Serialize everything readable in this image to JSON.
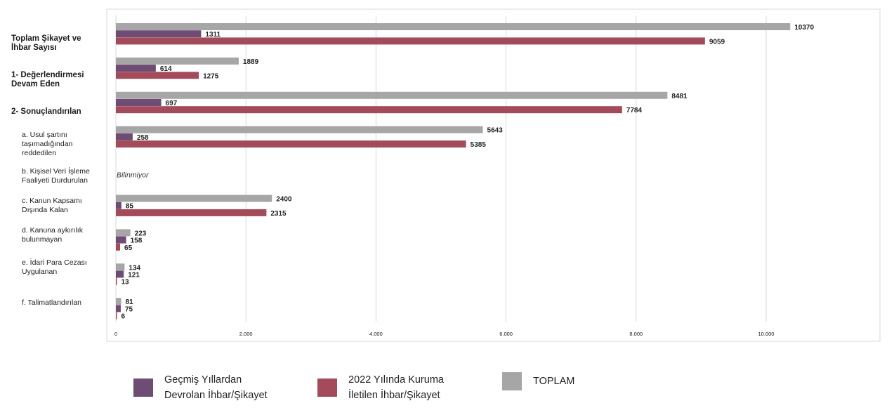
{
  "chart_data": {
    "type": "bar",
    "orientation": "horizontal",
    "categories": [
      {
        "label": "Toplam Şikayet ve\nİhbar Sayısı",
        "level": "main"
      },
      {
        "label": "1- Değerlendirmesi\nDevam Eden",
        "level": "main"
      },
      {
        "label": "2- Sonuçlandırılan",
        "level": "main"
      },
      {
        "label": "a. Usul şartını\ntaşımadığından\nreddedilen",
        "level": "sub"
      },
      {
        "label": "b. Kişisel Veri İşleme\nFaaliyeti Durdurulan",
        "level": "sub"
      },
      {
        "label": "c. Kanun Kapsamı\nDışında Kalan",
        "level": "sub"
      },
      {
        "label": "d. Kanuna aykırılık\nbulunmayan",
        "level": "sub"
      },
      {
        "label": "e. İdari Para Cezası\nUygulanan",
        "level": "sub"
      },
      {
        "label": "f. Talimatlandırılan",
        "level": "sub"
      }
    ],
    "series": [
      {
        "name": "TOPLAM",
        "color": "#a6a6a6",
        "values": [
          10370,
          1889,
          8481,
          5643,
          null,
          2400,
          223,
          134,
          81
        ]
      },
      {
        "name": "Geçmiş Yıllardan\nDevrolan İhbar/Şikayet",
        "color": "#6e4c73",
        "values": [
          1311,
          614,
          697,
          258,
          null,
          85,
          158,
          121,
          75
        ]
      },
      {
        "name": "2022 Yılında Kuruma\nİletilen İhbar/Şikayet",
        "color": "#a34b5a",
        "values": [
          9059,
          1275,
          7784,
          5385,
          null,
          2315,
          65,
          13,
          6
        ]
      }
    ],
    "legend_order": [
      1,
      2,
      0
    ],
    "missing_note": "Bilinmiyor",
    "xlim": [
      0,
      11500
    ],
    "xticks": [
      0,
      2000,
      4000,
      6000,
      8000,
      10000
    ],
    "xtick_labels": [
      "0",
      "2.000",
      "4.000",
      "6.000",
      "8.000",
      "10.000"
    ],
    "grid": true,
    "legend_position": "bottom"
  }
}
